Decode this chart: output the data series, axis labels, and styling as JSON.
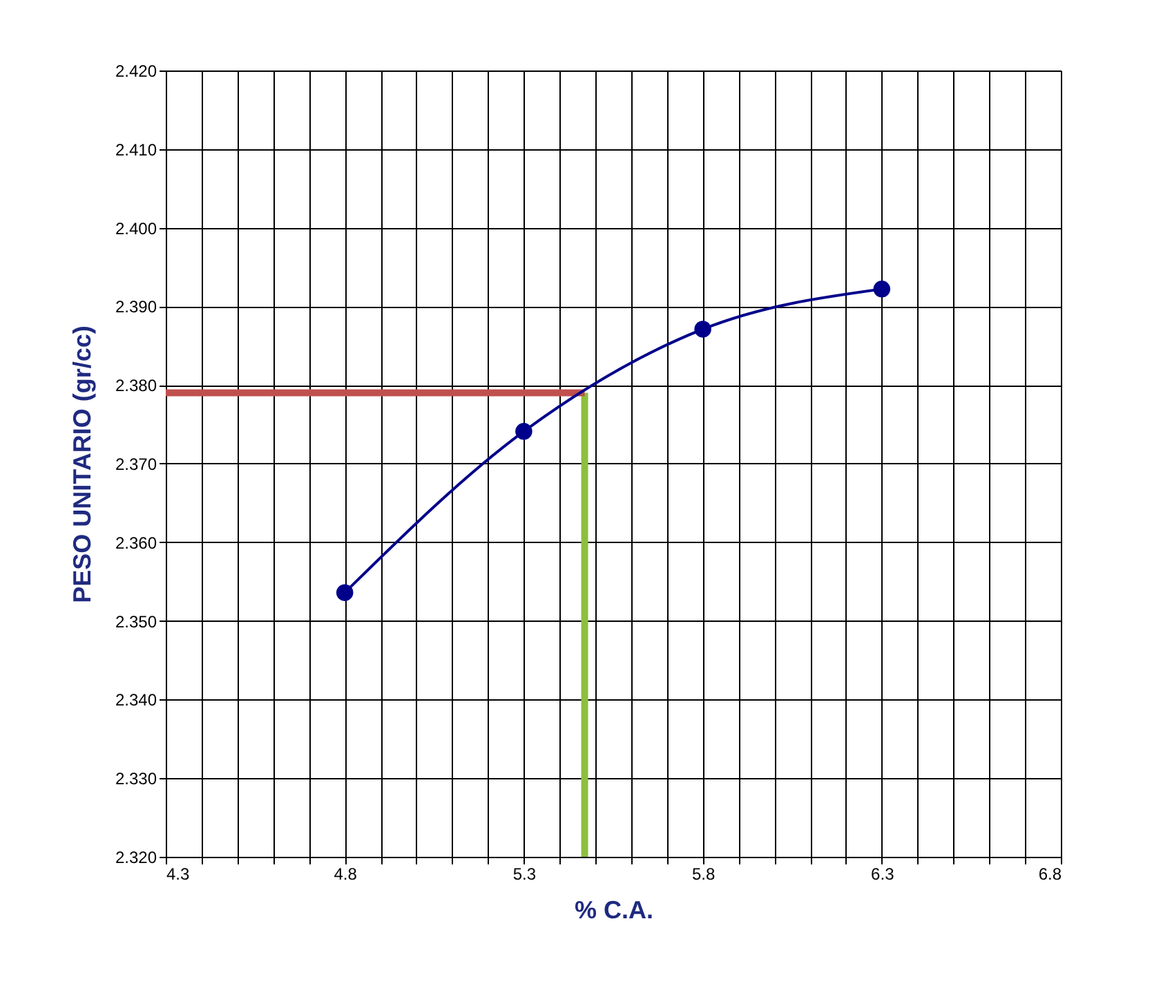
{
  "chart_data": {
    "type": "line",
    "xlabel": "% C.A.",
    "ylabel": "PESO UNITARIO (gr/cc)",
    "series": [
      {
        "type": "line",
        "color": "#00008b",
        "marker": "circle",
        "x": [
          4.8,
          5.3,
          5.8,
          6.3
        ],
        "values": [
          2.3536,
          2.3741,
          2.3871,
          2.3922
        ]
      },
      {
        "type": "line",
        "color": "#c0504d",
        "marker": "none",
        "x": [
          4.3,
          5.47
        ],
        "values": [
          2.379,
          2.379
        ]
      },
      {
        "type": "line",
        "color": "#8cbf3f",
        "marker": "none",
        "x": [
          5.47,
          5.47
        ],
        "values": [
          2.32,
          2.379
        ]
      }
    ],
    "xlim": [
      4.3,
      6.8
    ],
    "xticks": [
      4.3,
      {
        "value": 4.4,
        "label": null
      },
      {
        "value": 4.5,
        "label": null
      },
      {
        "value": 4.6,
        "label": null
      },
      {
        "value": 4.7,
        "label": null
      },
      4.8,
      {
        "value": 4.9,
        "label": null
      },
      {
        "value": 5.0,
        "label": null
      },
      {
        "value": 5.1,
        "label": null
      },
      {
        "value": 5.2,
        "label": null
      },
      5.3,
      {
        "value": 5.4,
        "label": null
      },
      {
        "value": 5.5,
        "label": null
      },
      {
        "value": 5.6,
        "label": null
      },
      {
        "value": 5.7,
        "label": null
      },
      5.8,
      {
        "value": 5.9,
        "label": null
      },
      {
        "value": 6.0,
        "label": null
      },
      {
        "value": 6.1,
        "label": null
      },
      {
        "value": 6.2,
        "label": null
      },
      6.3,
      {
        "value": 6.4,
        "label": null
      },
      {
        "value": 6.5,
        "label": null
      },
      {
        "value": 6.6,
        "label": null
      },
      {
        "value": 6.7,
        "label": null
      },
      6.8
    ],
    "ylim": [
      2.32,
      2.42
    ],
    "yticks": [
      {
        "value": 2.32,
        "label": "2.320"
      },
      {
        "value": 2.33,
        "label": "2.330"
      },
      {
        "value": 2.34,
        "label": "2.340"
      },
      {
        "value": 2.35,
        "label": "2.350"
      },
      {
        "value": 2.36,
        "label": "2.360"
      },
      {
        "value": 2.37,
        "label": "2.370"
      },
      {
        "value": 2.38,
        "label": "2.380"
      },
      {
        "value": 2.39,
        "label": "2.390"
      },
      {
        "value": 2.4,
        "label": "2.400"
      },
      {
        "value": 2.41,
        "label": "2.410"
      },
      {
        "value": 2.42,
        "label": "2.420"
      }
    ],
    "grid": true,
    "legend": false
  }
}
